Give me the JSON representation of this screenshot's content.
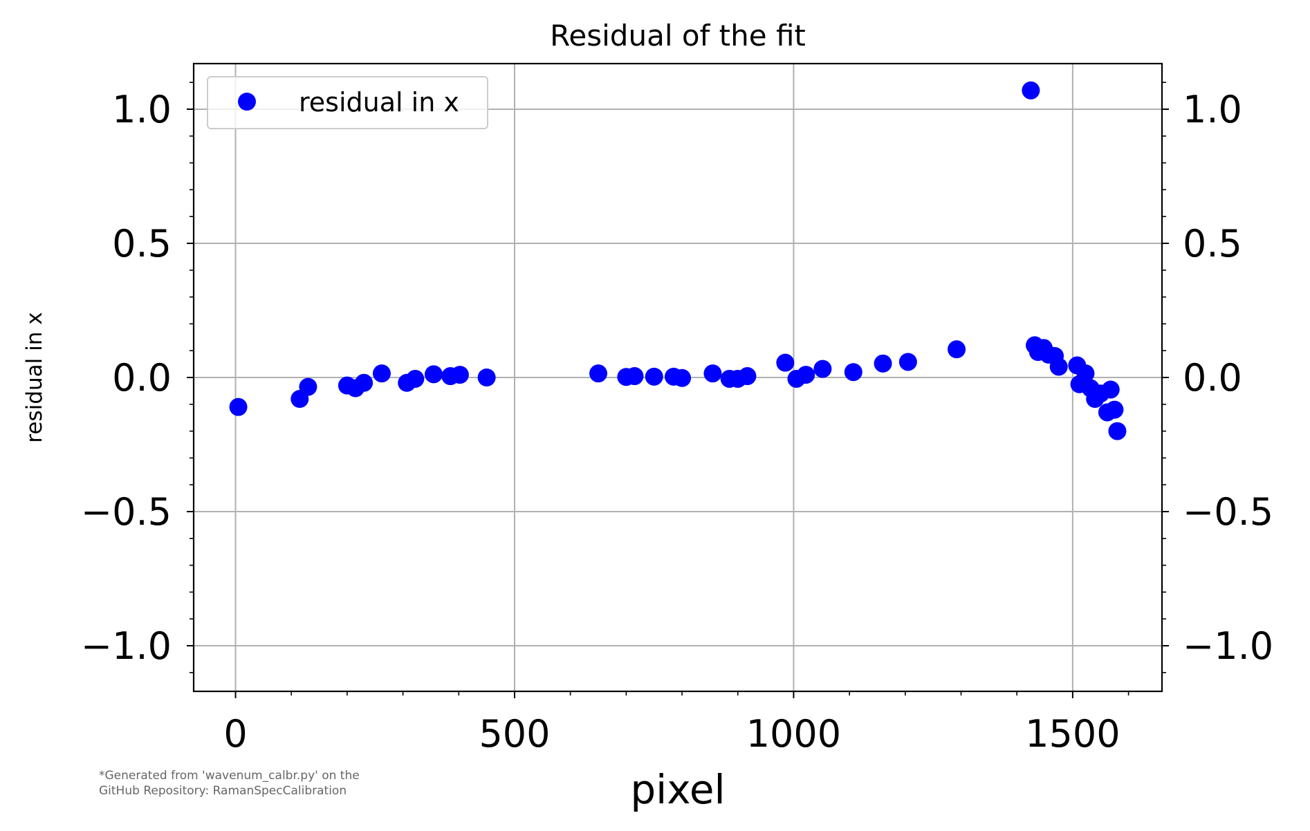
{
  "chart_data": {
    "type": "scatter",
    "title": "Residual of the fit",
    "xlabel": "pixel",
    "ylabel": "residual in x",
    "xlim": [
      -75,
      1660
    ],
    "ylim": [
      -1.17,
      1.17
    ],
    "xticks": [
      0,
      500,
      1000,
      1500
    ],
    "xtick_labels": [
      "0",
      "500",
      "1000",
      "1500"
    ],
    "yticks": [
      1.0,
      0.5,
      0.0,
      -0.5,
      -1.0
    ],
    "ytick_labels": [
      "1.0",
      "0.5",
      "0.0",
      "−0.5",
      "−1.0"
    ],
    "y_axis_mirrored_right": true,
    "grid": true,
    "legend": {
      "position": "top-left",
      "entries": [
        "residual in x"
      ]
    },
    "marker_color": "#0000ff",
    "series": [
      {
        "name": "residual in x",
        "points": [
          [
            5,
            -0.11
          ],
          [
            115,
            -0.08
          ],
          [
            130,
            -0.035
          ],
          [
            200,
            -0.03
          ],
          [
            215,
            -0.04
          ],
          [
            230,
            -0.02
          ],
          [
            262,
            0.015
          ],
          [
            307,
            -0.02
          ],
          [
            322,
            -0.005
          ],
          [
            355,
            0.012
          ],
          [
            385,
            0.005
          ],
          [
            402,
            0.01
          ],
          [
            450,
            0.0
          ],
          [
            650,
            0.015
          ],
          [
            700,
            0.002
          ],
          [
            715,
            0.005
          ],
          [
            750,
            0.003
          ],
          [
            785,
            0.003
          ],
          [
            800,
            -0.002
          ],
          [
            855,
            0.015
          ],
          [
            885,
            -0.005
          ],
          [
            900,
            -0.005
          ],
          [
            917,
            0.005
          ],
          [
            985,
            0.055
          ],
          [
            1005,
            -0.005
          ],
          [
            1022,
            0.01
          ],
          [
            1052,
            0.032
          ],
          [
            1107,
            0.02
          ],
          [
            1160,
            0.052
          ],
          [
            1205,
            0.058
          ],
          [
            1292,
            0.105
          ],
          [
            1425,
            1.07
          ],
          [
            1432,
            0.12
          ],
          [
            1438,
            0.095
          ],
          [
            1448,
            0.11
          ],
          [
            1457,
            0.085
          ],
          [
            1468,
            0.08
          ],
          [
            1475,
            0.04
          ],
          [
            1508,
            0.045
          ],
          [
            1512,
            -0.025
          ],
          [
            1523,
            0.015
          ],
          [
            1532,
            -0.04
          ],
          [
            1540,
            -0.08
          ],
          [
            1550,
            -0.06
          ],
          [
            1562,
            -0.13
          ],
          [
            1568,
            -0.045
          ],
          [
            1575,
            -0.12
          ],
          [
            1580,
            -0.2
          ]
        ]
      }
    ]
  },
  "footnote": {
    "line1": "*Generated from 'wavenum_calbr.py' on the",
    "line2": "GitHub Repository: RamanSpecCalibration"
  }
}
